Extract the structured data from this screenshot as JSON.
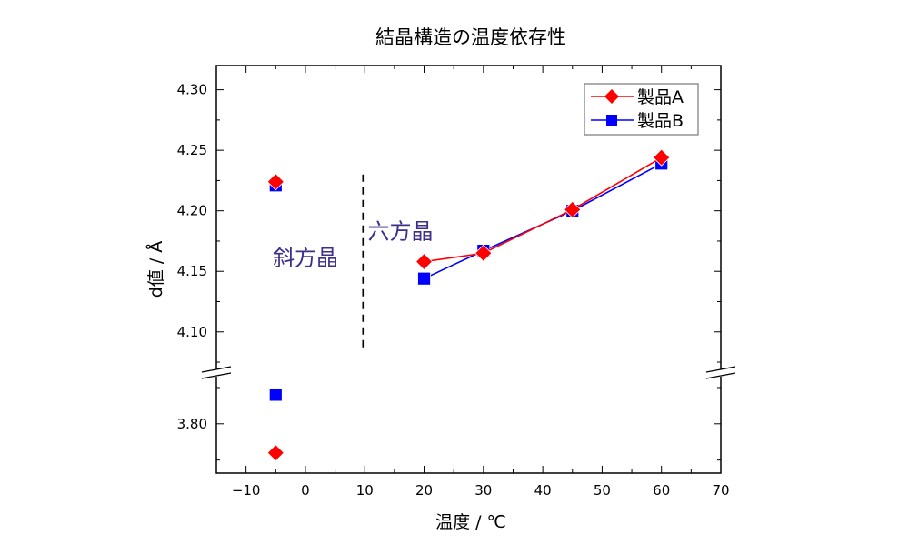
{
  "chart_data": {
    "type": "scatter",
    "title": "結晶構造の温度依存性",
    "xlabel": "温度 / ℃",
    "ylabel": "d値 / Å",
    "xlim": [
      -15,
      70
    ],
    "xticks": [
      -10,
      0,
      10,
      20,
      30,
      40,
      50,
      60,
      70
    ],
    "y_axis_break": true,
    "ylim_upper": [
      4.066,
      4.32
    ],
    "ylim_lower": [
      3.766,
      3.835
    ],
    "yticks_upper": [
      "4.10",
      "4.15",
      "4.20",
      "4.25",
      "4.30"
    ],
    "yticks_lower": [
      "3.80"
    ],
    "legend_position": "top-right",
    "series": [
      {
        "name": "製品A",
        "color": "#ff0000",
        "marker": "diamond",
        "points": [
          [
            -5,
            4.224
          ],
          [
            -5,
            3.78
          ],
          [
            20,
            4.158
          ],
          [
            30,
            4.165
          ],
          [
            45,
            4.201
          ],
          [
            60,
            4.244
          ]
        ],
        "line_from_x": 20
      },
      {
        "name": "製品B",
        "color": "#0000ff",
        "marker": "square",
        "points": [
          [
            -5,
            4.221
          ],
          [
            -5,
            3.82
          ],
          [
            20,
            4.144
          ],
          [
            30,
            4.167
          ],
          [
            45,
            4.2
          ],
          [
            60,
            4.239
          ]
        ],
        "line_from_x": 20
      }
    ],
    "annotations": [
      {
        "text": "斜方晶",
        "x": -5.5,
        "y": 4.155
      },
      {
        "text": "六方晶",
        "x": 10.5,
        "y": 4.177
      }
    ],
    "divider": {
      "x": 9.7,
      "y_from": 4.085,
      "y_to": 4.23,
      "style": "dashed"
    },
    "annotation_color": "#3d2f8a"
  }
}
